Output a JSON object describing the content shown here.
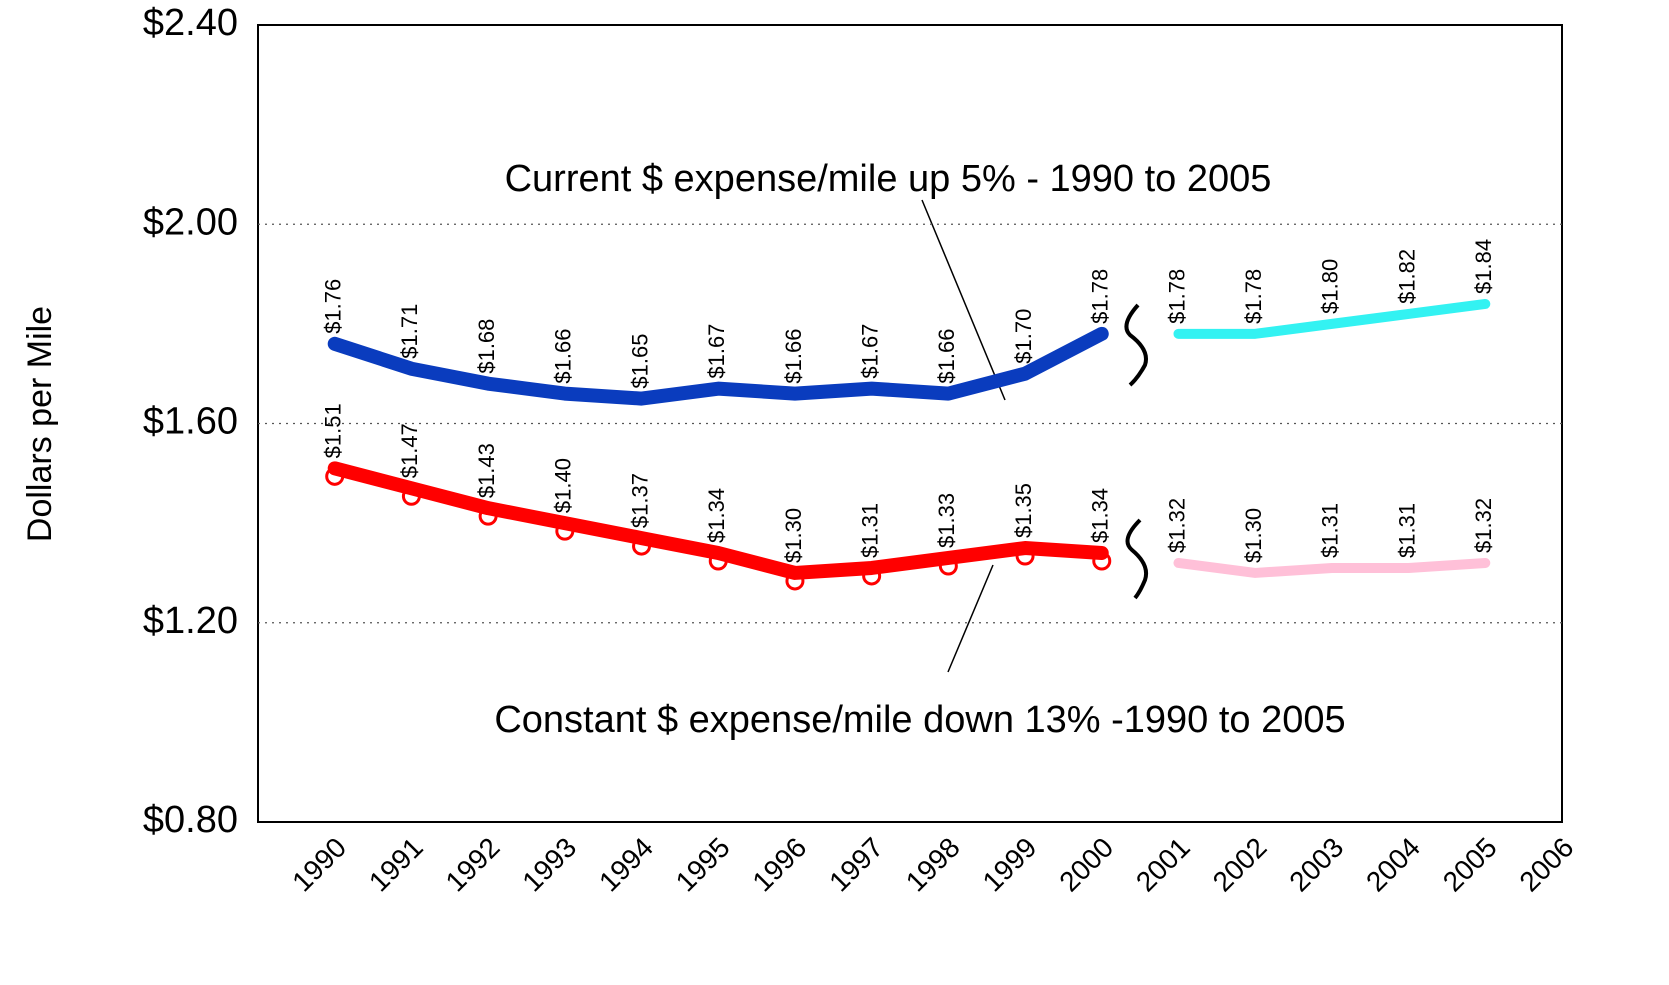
{
  "chart_data": {
    "type": "line",
    "ylabel": "Dollars per Mile",
    "annotations": [
      "Current $ expense/mile up 5% - 1990 to 2005",
      "Constant $ expense/mile down 13% -1990 to 2005"
    ],
    "xlim": [
      1989,
      2006
    ],
    "xticks": [
      1990,
      1991,
      1992,
      1993,
      1994,
      1995,
      1996,
      1997,
      1998,
      1999,
      2000,
      2001,
      2002,
      2003,
      2004,
      2005,
      2006
    ],
    "ylim": [
      0.8,
      2.4
    ],
    "yticks": [
      {
        "value": 0.8,
        "label": "$0.80"
      },
      {
        "value": 1.2,
        "label": "$1.20"
      },
      {
        "value": 1.6,
        "label": "$1.60"
      },
      {
        "value": 2.0,
        "label": "$2.00"
      },
      {
        "value": 2.4,
        "label": "$2.40"
      }
    ],
    "grid": true,
    "series": [
      {
        "color": "#0a3cbe",
        "x": [
          1990,
          1991,
          1992,
          1993,
          1994,
          1995,
          1996,
          1997,
          1998,
          1999,
          2000
        ],
        "values": [
          1.76,
          1.71,
          1.68,
          1.66,
          1.65,
          1.67,
          1.66,
          1.67,
          1.66,
          1.7,
          1.78
        ],
        "value_labels": [
          "$1.76",
          "$1.71",
          "$1.68",
          "$1.66",
          "$1.65",
          "$1.67",
          "$1.66",
          "$1.67",
          "$1.66",
          "$1.70",
          "$1.78"
        ]
      },
      {
        "color": "#ff0000",
        "x": [
          1990,
          1991,
          1992,
          1993,
          1994,
          1995,
          1996,
          1997,
          1998,
          1999,
          2000
        ],
        "values": [
          1.51,
          1.47,
          1.43,
          1.4,
          1.37,
          1.34,
          1.3,
          1.31,
          1.33,
          1.35,
          1.34
        ],
        "value_labels": [
          "$1.51",
          "$1.47",
          "$1.43",
          "$1.40",
          "$1.37",
          "$1.34",
          "$1.30",
          "$1.31",
          "$1.33",
          "$1.35",
          "$1.34"
        ]
      },
      {
        "color": "#33f2f2",
        "x": [
          2001,
          2002,
          2003,
          2004,
          2005
        ],
        "values": [
          1.78,
          1.78,
          1.8,
          1.82,
          1.84
        ],
        "value_labels": [
          "$1.78",
          "$1.78",
          "$1.80",
          "$1.82",
          "$1.84"
        ]
      },
      {
        "color": "#ffc0d8",
        "x": [
          2001,
          2002,
          2003,
          2004,
          2005
        ],
        "values": [
          1.32,
          1.3,
          1.31,
          1.31,
          1.32
        ],
        "value_labels": [
          "$1.32",
          "$1.30",
          "$1.31",
          "$1.31",
          "$1.32"
        ]
      }
    ]
  }
}
